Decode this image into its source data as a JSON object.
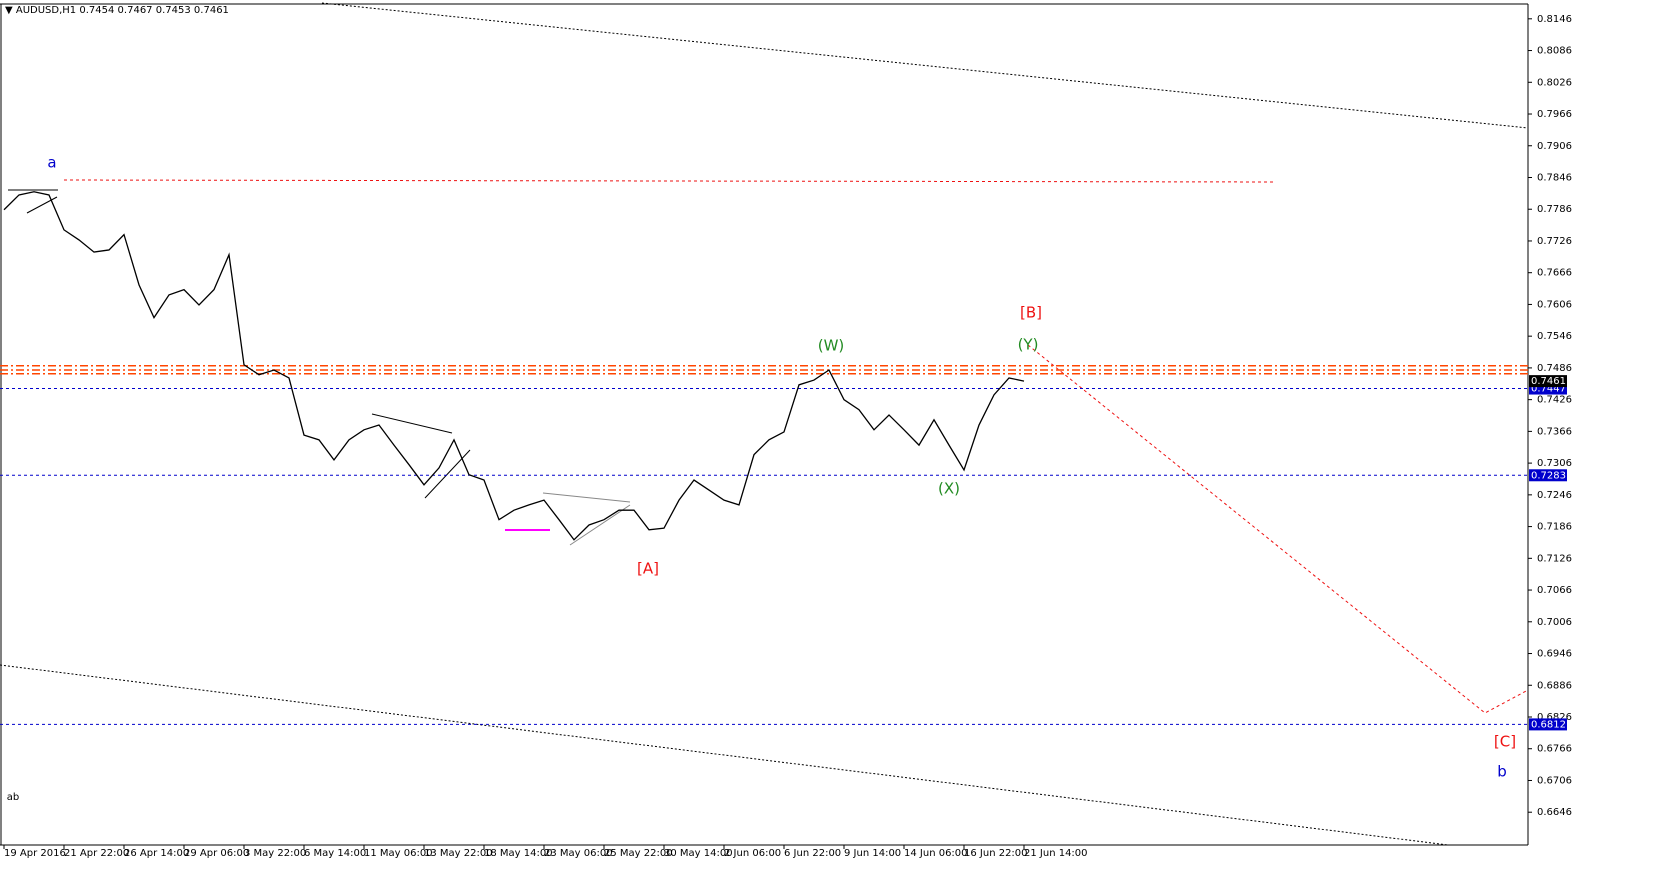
{
  "chart_data": {
    "type": "line",
    "symbol": "AUDUSD,H1",
    "ohlc": [
      0.7454,
      0.7467,
      0.7453,
      0.7461
    ],
    "categories": [
      "19 Apr 2016",
      null,
      null,
      null,
      "21 Apr 22:00",
      null,
      null,
      null,
      "26 Apr 14:00",
      null,
      null,
      null,
      "29 Apr 06:00",
      null,
      null,
      null,
      "3 May 22:00",
      null,
      null,
      null,
      "6 May 14:00",
      null,
      null,
      null,
      "11 May 06:00",
      null,
      null,
      null,
      "13 May 22:00",
      null,
      null,
      null,
      "18 May 14:00",
      null,
      null,
      null,
      "23 May 06:00",
      null,
      null,
      null,
      "25 May 22:00",
      null,
      null,
      null,
      "30 May 14:00",
      null,
      null,
      null,
      "2 Jun 06:00",
      null,
      null,
      null,
      "6 Jun 22:00",
      null,
      null,
      null,
      "9 Jun 14:00",
      null,
      null,
      null,
      "14 Jun 06:00",
      null,
      null,
      null,
      "16 Jun 22:00",
      null,
      null,
      null,
      "21 Jun 14:00"
    ],
    "values": [
      0.7785,
      0.7813,
      0.7819,
      0.7813,
      0.7747,
      0.7728,
      0.7705,
      0.7709,
      0.7738,
      0.7643,
      0.7581,
      0.7624,
      0.7634,
      0.7605,
      0.7634,
      0.77,
      0.7492,
      0.7473,
      0.7482,
      0.7467,
      0.7359,
      0.735,
      0.7312,
      0.735,
      0.7369,
      0.7378,
      0.734,
      0.7303,
      0.7265,
      0.7297,
      0.735,
      0.7284,
      0.7274,
      0.7199,
      0.7217,
      0.7227,
      0.7236,
      0.7199,
      0.7161,
      0.7189,
      0.7199,
      0.7217,
      0.7217,
      0.718,
      0.7183,
      0.7236,
      0.7274,
      0.7255,
      0.7236,
      0.7227,
      0.7322,
      0.735,
      0.7365,
      0.7454,
      0.7463,
      0.7482,
      0.7426,
      0.7407,
      0.7369,
      0.7397,
      0.7369,
      0.734,
      0.7388,
      0.734,
      0.7293,
      0.7378,
      0.7435,
      0.7467,
      0.7461
    ],
    "color": "#000000",
    "ylim": [
      0.6584,
      0.8174
    ],
    "yticks": [
      0.8146,
      0.8086,
      0.8026,
      0.7966,
      0.7906,
      0.7846,
      0.7786,
      0.7726,
      0.7666,
      0.7606,
      0.7546,
      0.7486,
      0.7426,
      0.7366,
      0.7306,
      0.7246,
      0.7186,
      0.7126,
      0.7066,
      0.7006,
      0.6946,
      0.6886,
      0.6826,
      0.6766,
      0.6706,
      0.6646
    ],
    "price_marker": 0.7461,
    "hlines": [
      {
        "value": 0.7447,
        "color": "#0000cc",
        "style": "dashed",
        "label": true
      },
      {
        "value": 0.7283,
        "color": "#0000cc",
        "style": "dashed",
        "label": true
      },
      {
        "value": 0.6812,
        "color": "#0000cc",
        "style": "dashed",
        "label": true
      },
      {
        "value": 0.749,
        "color": "#ff4500",
        "style": "dashdot",
        "label": false
      },
      {
        "value": 0.7482,
        "color": "#ff4500",
        "style": "dashdot",
        "label": false
      },
      {
        "value": 0.7475,
        "color": "#ff4500",
        "style": "dashdot",
        "label": false
      }
    ],
    "annotations": [
      {
        "text": "a",
        "color": "#0000cc"
      },
      {
        "text": "[B]",
        "color": "#ee1111"
      },
      {
        "text": "(W)",
        "color": "#228b22"
      },
      {
        "text": "(Y)",
        "color": "#228b22"
      },
      {
        "text": "(X)",
        "color": "#228b22"
      },
      {
        "text": "[A]",
        "color": "#ee1111"
      },
      {
        "text": "[C]",
        "color": "#ee1111"
      },
      {
        "text": "b",
        "color": "#0000cc"
      },
      {
        "text": "ab",
        "color": "#000000"
      }
    ]
  }
}
